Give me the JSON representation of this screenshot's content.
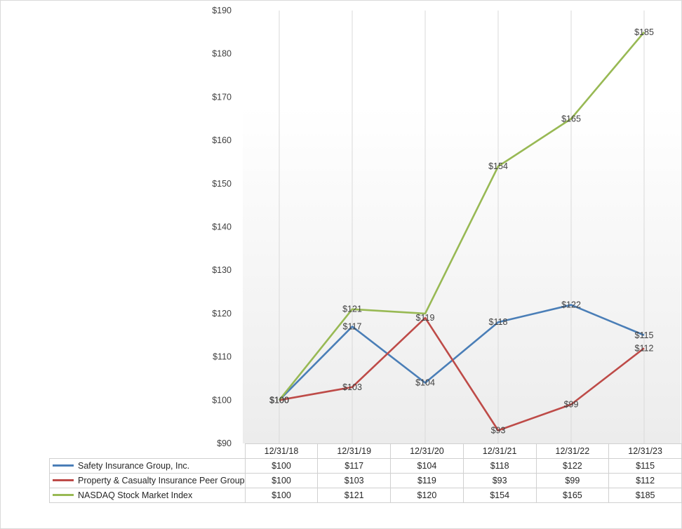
{
  "chart_data": {
    "type": "line",
    "categories": [
      "12/31/18",
      "12/31/19",
      "12/31/20",
      "12/31/21",
      "12/31/22",
      "12/31/23"
    ],
    "ylim": [
      90,
      190
    ],
    "yticks": [
      "$90",
      "$100",
      "$110",
      "$120",
      "$130",
      "$140",
      "$150",
      "$160",
      "$170",
      "$180",
      "$190"
    ],
    "grid": "vertical",
    "legend": "data-table",
    "series": [
      {
        "name": "Safety Insurance Group, Inc.",
        "color": "#4a7eb7",
        "values": [
          100,
          117,
          104,
          118,
          122,
          115
        ],
        "labels": [
          "$100",
          "$117",
          "$104",
          "$118",
          "$122",
          "$115"
        ],
        "table": [
          "$100",
          "$117",
          "$104",
          "$118",
          "$122",
          "$115"
        ]
      },
      {
        "name": "Property & Casualty Insurance Peer Group",
        "color": "#be4b48",
        "values": [
          100,
          103,
          119,
          93,
          99,
          112
        ],
        "labels": [
          "$100",
          "$103",
          "$119",
          "$93",
          "$99",
          "$112"
        ],
        "table": [
          "$100",
          "$103",
          "$119",
          "$93",
          "$99",
          "$112"
        ]
      },
      {
        "name": "NASDAQ Stock Market Index",
        "color": "#98b954",
        "values": [
          100,
          121,
          120,
          154,
          165,
          185
        ],
        "labels": [
          "$100",
          "$121",
          "",
          "$154",
          "$165",
          "$185"
        ],
        "table": [
          "$100",
          "$121",
          "$120",
          "$154",
          "$165",
          "$185"
        ]
      }
    ]
  }
}
